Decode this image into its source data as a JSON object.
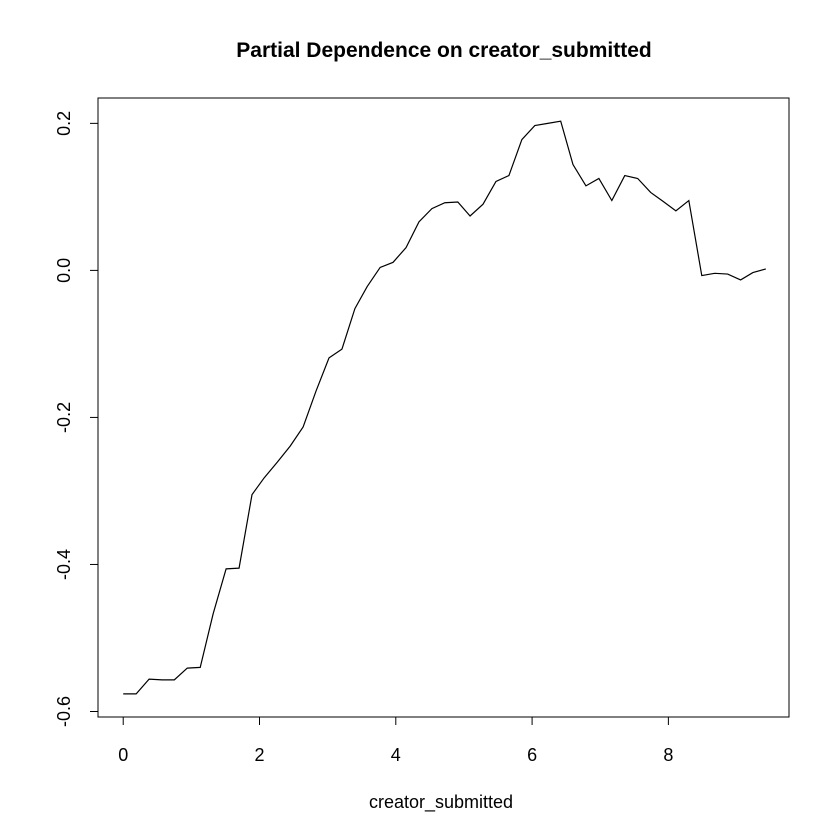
{
  "chart_data": {
    "type": "line",
    "title": "Partial Dependence on creator_submitted",
    "xlabel": "creator_submitted",
    "ylabel": "",
    "xlim": [
      -0.37,
      9.77
    ],
    "ylim": [
      -0.6075,
      0.2345
    ],
    "xticks": [
      0,
      2,
      4,
      6,
      8
    ],
    "xtick_labels": [
      "0",
      "2",
      "4",
      "6",
      "8"
    ],
    "yticks": [
      -0.6,
      -0.4,
      -0.2,
      0.0,
      0.2
    ],
    "ytick_labels": [
      "-0.6",
      "-0.4",
      "-0.2",
      "0.0",
      "0.2"
    ],
    "grid": false,
    "legend": "none",
    "line_color": "#000000",
    "series": [
      {
        "x": [
          0.0,
          0.19,
          0.38,
          0.57,
          0.75,
          0.94,
          1.13,
          1.32,
          1.51,
          1.7,
          1.89,
          2.07,
          2.26,
          2.45,
          2.64,
          2.83,
          3.02,
          3.21,
          3.4,
          3.58,
          3.77,
          3.96,
          4.15,
          4.34,
          4.53,
          4.72,
          4.91,
          5.09,
          5.28,
          5.47,
          5.66,
          5.85,
          6.04,
          6.23,
          6.42,
          6.6,
          6.79,
          6.98,
          7.17,
          7.36,
          7.55,
          7.74,
          7.92,
          8.11,
          8.3,
          8.49,
          8.68,
          8.87,
          9.06,
          9.24,
          9.43
        ],
        "y": [
          -0.576,
          -0.576,
          -0.556,
          -0.557,
          -0.557,
          -0.541,
          -0.54,
          -0.467,
          -0.406,
          -0.405,
          -0.305,
          -0.282,
          -0.261,
          -0.239,
          -0.213,
          -0.164,
          -0.119,
          -0.107,
          -0.052,
          -0.022,
          0.004,
          0.011,
          0.031,
          0.066,
          0.084,
          0.092,
          0.093,
          0.074,
          0.09,
          0.121,
          0.129,
          0.178,
          0.197,
          0.2,
          0.203,
          0.144,
          0.115,
          0.125,
          0.095,
          0.129,
          0.125,
          0.106,
          0.094,
          0.081,
          0.095,
          -0.007,
          -0.004,
          -0.005,
          -0.013,
          -0.003,
          0.002
        ]
      }
    ]
  }
}
